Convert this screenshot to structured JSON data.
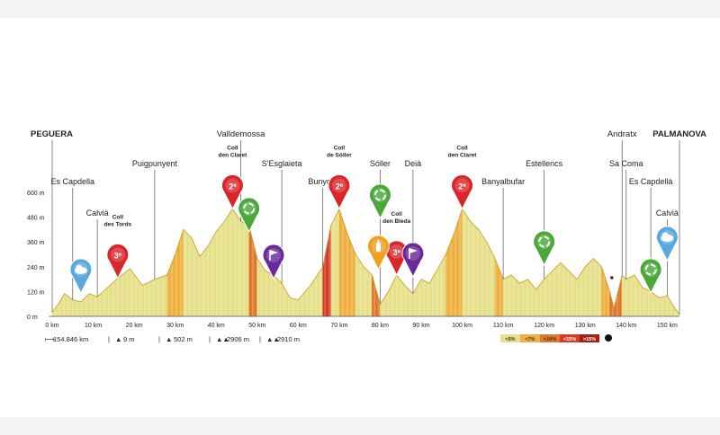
{
  "chart_data": {
    "type": "area",
    "title": "",
    "xlabel": "",
    "ylabel": "",
    "y_ticks": [
      "0 m",
      "120 m",
      "240 m",
      "360 m",
      "480 m",
      "600 m"
    ],
    "x_ticks": [
      "0 km",
      "10 km",
      "20 km",
      "30 km",
      "40 km",
      "50 km",
      "60 km",
      "70 km",
      "80 km",
      "90 km",
      "100 km",
      "110 km",
      "120 km",
      "130 km",
      "140 km",
      "150 km"
    ],
    "xlim": [
      0,
      153
    ],
    "ylim": [
      0,
      600
    ],
    "colors": {
      "easy": "#e6e08a",
      "medium": "#f0b040",
      "hard": "#e07a2a",
      "steep": "#d83a26",
      "very_steep": "#9a2418"
    },
    "elevation_profile": {
      "x": [
        0,
        1.5,
        3,
        5,
        7,
        9,
        11,
        13,
        16,
        19,
        22,
        25,
        28,
        30,
        32,
        34,
        36,
        38,
        40,
        42,
        44,
        46,
        48,
        50,
        52,
        54,
        56,
        58,
        60,
        63,
        66,
        68,
        70,
        72,
        74,
        76,
        78,
        80,
        82,
        84,
        86,
        88,
        90,
        92,
        94,
        96,
        98,
        100,
        102,
        104,
        106,
        108,
        110,
        112,
        114,
        116,
        118,
        120,
        122,
        124,
        126,
        128,
        130,
        132,
        134,
        136,
        137,
        138,
        139,
        140,
        142,
        144,
        146,
        148,
        150,
        151.5,
        153
      ],
      "y": [
        20,
        60,
        110,
        80,
        70,
        110,
        95,
        130,
        185,
        230,
        150,
        180,
        200,
        300,
        420,
        380,
        290,
        340,
        410,
        460,
        520,
        460,
        440,
        280,
        220,
        200,
        160,
        90,
        80,
        150,
        240,
        440,
        520,
        400,
        300,
        240,
        200,
        60,
        120,
        200,
        150,
        110,
        180,
        160,
        230,
        300,
        400,
        520,
        460,
        420,
        360,
        280,
        180,
        200,
        160,
        180,
        130,
        180,
        220,
        260,
        220,
        180,
        240,
        280,
        240,
        120,
        40,
        120,
        200,
        180,
        200,
        140,
        120,
        90,
        100,
        50,
        10
      ]
    },
    "gradient_legend": [
      "<5%",
      "<7%",
      "<10%",
      "<15%",
      ">15%"
    ],
    "stats": [
      "154.846 km",
      "9 m",
      "502 m",
      "2906 m",
      "2910 m"
    ],
    "places": [
      {
        "name": "PEGUERA",
        "x": 0,
        "y": 20,
        "level": 0
      },
      {
        "name": "Es Capdella",
        "x": 5,
        "y": 80,
        "level": 2
      },
      {
        "name": "Calvià",
        "x": 11,
        "y": 95,
        "level": 3
      },
      {
        "name": "Puigpunyent",
        "x": 25,
        "y": 180,
        "level": 1
      },
      {
        "name": "Valldemossa",
        "x": 46,
        "y": 460,
        "level": 0
      },
      {
        "name": "S'Esglaieta",
        "x": 56,
        "y": 160,
        "level": 1
      },
      {
        "name": "Bunyola",
        "x": 66,
        "y": 240,
        "level": 2
      },
      {
        "name": "Sóller",
        "x": 80,
        "y": 60,
        "level": 1
      },
      {
        "name": "Deià",
        "x": 88,
        "y": 110,
        "level": 1
      },
      {
        "name": "Banyalbufar",
        "x": 110,
        "y": 180,
        "level": 2
      },
      {
        "name": "Estellencs",
        "x": 120,
        "y": 180,
        "level": 1
      },
      {
        "name": "Andratx",
        "x": 139,
        "y": 200,
        "level": 0
      },
      {
        "name": "Sa Coma",
        "x": 140,
        "y": 180,
        "level": 1
      },
      {
        "name": "Es Capdellà",
        "x": 146,
        "y": 120,
        "level": 2
      },
      {
        "name": "Calvià",
        "x": 150,
        "y": 100,
        "level": 3
      },
      {
        "name": "PALMANOVA",
        "x": 153,
        "y": 10,
        "level": 0
      }
    ],
    "climbs": [
      {
        "line1": "Coll",
        "line2": "des Tords",
        "category": "3ª",
        "color": "#d8262a",
        "x": 16,
        "y": 185
      },
      {
        "line1": "Coll",
        "line2": "den Claret",
        "category": "2ª",
        "color": "#d8262a",
        "x": 44,
        "y": 520
      },
      {
        "line1": "Coll",
        "line2": "de Sóller",
        "category": "2ª",
        "color": "#d8262a",
        "x": 70,
        "y": 520
      },
      {
        "line1": "Coll",
        "line2": "den Bleda",
        "category": "3ª",
        "color": "#d8262a",
        "x": 84,
        "y": 200
      },
      {
        "line1": "Coll",
        "line2": "den Claret",
        "category": "2ª",
        "color": "#d8262a",
        "x": 100,
        "y": 520
      }
    ],
    "markers": [
      {
        "kind": "cloud",
        "color": "#5aa8e0",
        "x": 7,
        "y": 70
      },
      {
        "kind": "recycle",
        "color": "#4aa838",
        "x": 48,
        "y": 440
      },
      {
        "kind": "flag",
        "color": "#6a2a9a",
        "x": 54,
        "y": 200
      },
      {
        "kind": "recycle",
        "color": "#4aa838",
        "x": 80,
        "y": 60
      },
      {
        "kind": "bottle",
        "color": "#f0a020",
        "x": 80,
        "y": 60
      },
      {
        "kind": "flag",
        "color": "#6a2a9a",
        "x": 88,
        "y": 110
      },
      {
        "kind": "recycle",
        "color": "#4aa838",
        "x": 120,
        "y": 180
      },
      {
        "kind": "recycle",
        "color": "#4aa838",
        "x": 146,
        "y": 120
      },
      {
        "kind": "cloud",
        "color": "#5aa8e0",
        "x": 150,
        "y": 100
      }
    ]
  }
}
